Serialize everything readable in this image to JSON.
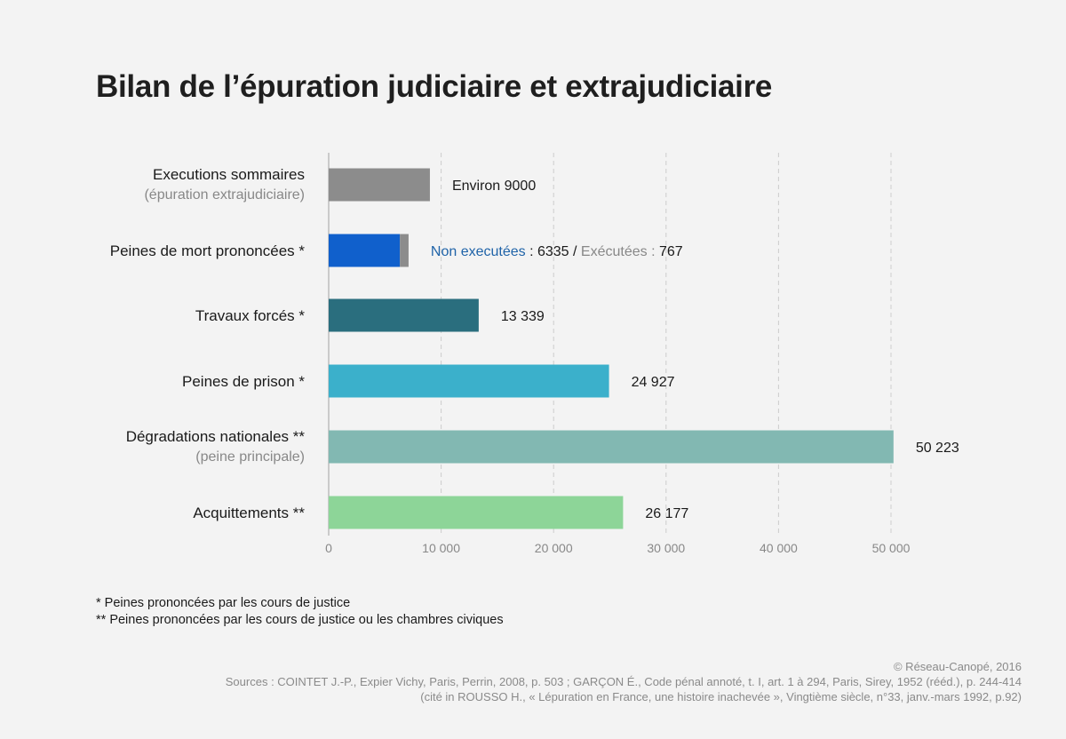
{
  "title": "Bilan de l’épuration judiciaire et extrajudiciaire",
  "colors": {
    "gray": "#8c8c8c",
    "blue": "#1060cc",
    "teal_dark": "#2a6e7e",
    "cyan": "#3bb0cb",
    "sage": "#82b8b2",
    "green": "#8dd598",
    "grid": "#cccccc",
    "label_gray": "#888888",
    "nonexec_label": "#1f63a8"
  },
  "chart_data": {
    "type": "bar",
    "orientation": "horizontal",
    "stacked_partial": true,
    "title": "Bilan de l’épuration judiciaire et extrajudiciaire",
    "xlim": [
      0,
      52000
    ],
    "xticks": [
      0,
      10000,
      20000,
      30000,
      40000,
      50000
    ],
    "xtick_labels": [
      "0",
      "10 000",
      "20 000",
      "30 000",
      "40 000",
      "50 000"
    ],
    "grid": true,
    "categories": [
      {
        "label": "Executions sommaires",
        "sublabel": "(épuration extrajudiciaire)",
        "segments": [
          {
            "value": 9000,
            "color": "gray"
          }
        ],
        "value_label": "Environ 9000"
      },
      {
        "label": "Peines de mort prononcées *",
        "sublabel": "",
        "segments": [
          {
            "name": "Non executées",
            "value": 6335,
            "color": "blue"
          },
          {
            "name": "Exécutées",
            "value": 767,
            "color": "gray"
          }
        ],
        "value_label_parts": {
          "nonexec_name": "Non executées",
          "nonexec_sep": " : ",
          "nonexec_value": "6335",
          "slash": " / ",
          "exec_name": "Exécutées",
          "exec_sep": " : ",
          "exec_value": "767"
        }
      },
      {
        "label": "Travaux forcés *",
        "sublabel": "",
        "segments": [
          {
            "value": 13339,
            "color": "teal_dark"
          }
        ],
        "value_label": "13 339"
      },
      {
        "label": "Peines de prison *",
        "sublabel": "",
        "segments": [
          {
            "value": 24927,
            "color": "cyan"
          }
        ],
        "value_label": "24 927"
      },
      {
        "label": "Dégradations nationales **",
        "sublabel": "(peine principale)",
        "segments": [
          {
            "value": 50223,
            "color": "sage"
          }
        ],
        "value_label": "50 223"
      },
      {
        "label": "Acquittements **",
        "sublabel": "",
        "segments": [
          {
            "value": 26177,
            "color": "green"
          }
        ],
        "value_label": "26 177"
      }
    ]
  },
  "footnotes": {
    "one": " * Peines prononcées par les cours de justice",
    "two": "** Peines prononcées par les cours de justice ou les chambres civiques"
  },
  "credit": {
    "copyright": "© Réseau-Canopé, 2016",
    "sources_line1": "Sources : COINTET J.-P., Expier Vichy, Paris, Perrin, 2008, p. 503 ; GARÇON É., Code pénal annoté, t. I, art. 1 à 294, Paris, Sirey, 1952 (rééd.), p. 244-414",
    "sources_line2": "(cité in ROUSSO H., « Lépuration en France, une histoire inachevée », Vingtième siècle, n°33, janv.-mars 1992, p.92)"
  }
}
